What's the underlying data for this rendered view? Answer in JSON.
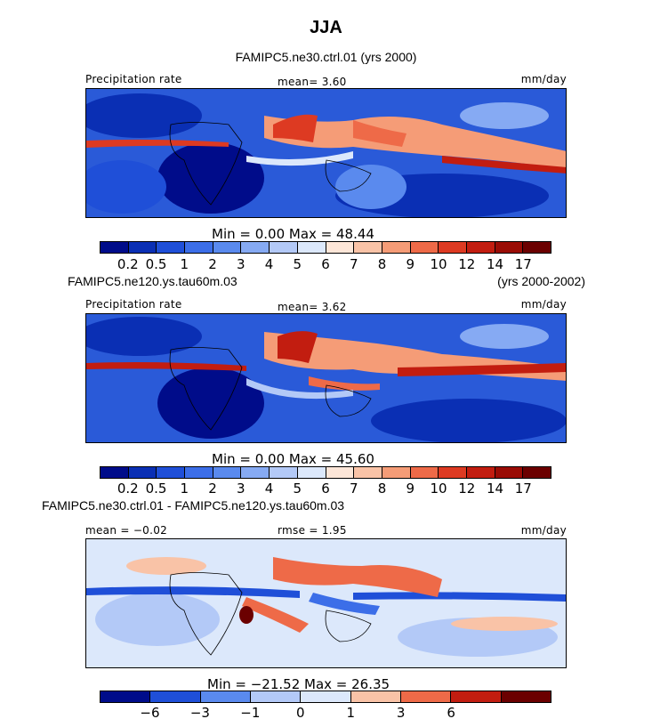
{
  "title": "JJA",
  "panels": [
    {
      "top_left_title": "FAMIPC5.ne30.ctrl.01 (yrs 2000)",
      "top_right_title": "",
      "label_left": "Precipitation rate",
      "label_mid": "mean=   3.60",
      "label_right": "mm/day",
      "minmax": "Min =    0.00  Max =   48.44",
      "colorbar_ticks": [
        "0.2",
        "0.5",
        "1",
        "2",
        "3",
        "4",
        "5",
        "6",
        "7",
        "8",
        "9",
        "10",
        "12",
        "14",
        "17"
      ]
    },
    {
      "top_left_title": "FAMIPC5.ne120.ys.tau60m.03",
      "top_right_title": "(yrs 2000-2002)",
      "label_left": "Precipitation rate",
      "label_mid": "mean=   3.62",
      "label_right": "mm/day",
      "minmax": "Min =    0.00  Max =   45.60",
      "colorbar_ticks": [
        "0.2",
        "0.5",
        "1",
        "2",
        "3",
        "4",
        "5",
        "6",
        "7",
        "8",
        "9",
        "10",
        "12",
        "14",
        "17"
      ]
    },
    {
      "top_left_title": "FAMIPC5.ne30.ctrl.01 - FAMIPC5.ne120.ys.tau60m.03",
      "top_right_title": "",
      "label_left": "mean =  −0.02",
      "label_mid": "rmse =    1.95",
      "label_right": "mm/day",
      "minmax": "Min = −21.52  Max =   26.35",
      "colorbar_ticks": [
        "−6",
        "−3",
        "−1",
        "0",
        "1",
        "3",
        "6"
      ]
    }
  ],
  "chart_data": [
    {
      "type": "heatmap",
      "title": "FAMIPC5.ne30.ctrl.01 (yrs 2000)",
      "variable": "Precipitation rate",
      "units": "mm/day",
      "mean": 3.6,
      "min": 0.0,
      "max": 48.44,
      "contour_levels": [
        0.2,
        0.5,
        1,
        2,
        3,
        4,
        5,
        6,
        7,
        8,
        9,
        10,
        12,
        14,
        17
      ],
      "colors": [
        "#000c8a",
        "#0a2fb4",
        "#1f4fd8",
        "#3c6ee8",
        "#5a8aee",
        "#86aaf3",
        "#b3c9f7",
        "#dce8fb",
        "#fde6d8",
        "#f9c3a7",
        "#f59c77",
        "#ee6a48",
        "#dd3a22",
        "#c21d10",
        "#9a0c05",
        "#6b0000"
      ]
    },
    {
      "type": "heatmap",
      "title": "FAMIPC5.ne120.ys.tau60m.03 (yrs 2000-2002)",
      "variable": "Precipitation rate",
      "units": "mm/day",
      "mean": 3.62,
      "min": 0.0,
      "max": 45.6,
      "contour_levels": [
        0.2,
        0.5,
        1,
        2,
        3,
        4,
        5,
        6,
        7,
        8,
        9,
        10,
        12,
        14,
        17
      ],
      "colors": [
        "#000c8a",
        "#0a2fb4",
        "#1f4fd8",
        "#3c6ee8",
        "#5a8aee",
        "#86aaf3",
        "#b3c9f7",
        "#dce8fb",
        "#fde6d8",
        "#f9c3a7",
        "#f59c77",
        "#ee6a48",
        "#dd3a22",
        "#c21d10",
        "#9a0c05",
        "#6b0000"
      ]
    },
    {
      "type": "heatmap",
      "title": "FAMIPC5.ne30.ctrl.01 - FAMIPC5.ne120.ys.tau60m.03",
      "units": "mm/day",
      "mean": -0.02,
      "rmse": 1.95,
      "min": -21.52,
      "max": 26.35,
      "contour_levels": [
        -6,
        -3,
        -1,
        0,
        1,
        3,
        6
      ],
      "colors": [
        "#000c8a",
        "#1f4fd8",
        "#5a8aee",
        "#b3c9f7",
        "#dce8fb",
        "#f9c3a7",
        "#ee6a48",
        "#c21d10",
        "#6b0000"
      ]
    }
  ]
}
